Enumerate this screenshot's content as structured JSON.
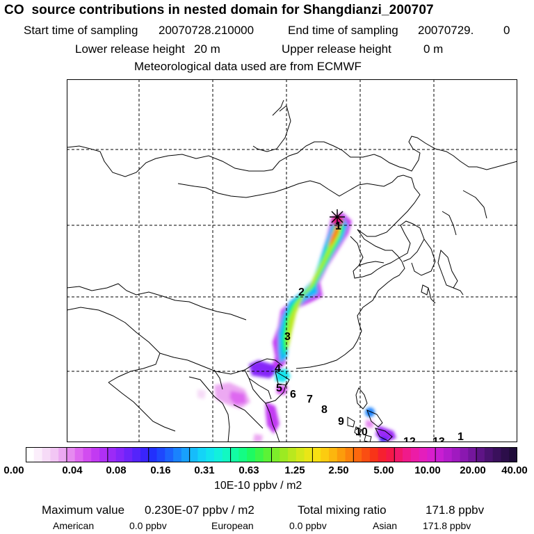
{
  "header": {
    "title": "CO  source contributions in nested domain for Shangdianzi_200707",
    "start_label": "Start time of sampling",
    "start_value": "20070728.210000",
    "end_label": "End time of sampling",
    "end_value": "20070729.",
    "end_value2": "0",
    "lower_label": "Lower release height",
    "lower_value": "20 m",
    "upper_label": "Upper release height",
    "upper_value": "0 m",
    "met_line": "Meteorological data used are from ECMWF"
  },
  "map": {
    "receptor_icon": "star-marker-icon",
    "backward_time_labels": [
      {
        "text": "1"
      },
      {
        "text": "2"
      },
      {
        "text": "3"
      },
      {
        "text": "4"
      },
      {
        "text": "5"
      },
      {
        "text": "6"
      },
      {
        "text": "7"
      },
      {
        "text": "8"
      },
      {
        "text": "9"
      },
      {
        "text": "10"
      },
      {
        "text": "12"
      },
      {
        "text": "13"
      },
      {
        "text": "1"
      }
    ]
  },
  "colorbar": {
    "tick_labels": [
      "0.00",
      "0.04",
      "0.08",
      "0.16",
      "0.31",
      "0.63",
      "1.25",
      "2.50",
      "5.00",
      "10.00",
      "20.00",
      "40.00"
    ],
    "unit": "10E-10 ppbv / m2",
    "colors": [
      "#ffffff",
      "#fbeefb",
      "#f6dbf7",
      "#f2c6f4",
      "#eca9f2",
      "#e68af0",
      "#de68f0",
      "#d24cf0",
      "#c23af2",
      "#b030f5",
      "#9c2af7",
      "#8626f9",
      "#6e24fa",
      "#5424fb",
      "#3a24fc",
      "#2230fd",
      "#1e48fd",
      "#1c64fd",
      "#1a82fd",
      "#18a0fd",
      "#16bcfb",
      "#14d4f7",
      "#12e4ee",
      "#12f0dc",
      "#12f8c2",
      "#12fca4",
      "#14fc84",
      "#1efa62",
      "#3cf648",
      "#5cf236",
      "#7cee2a",
      "#9cea22",
      "#bae81e",
      "#d4e81a",
      "#eae616",
      "#f8e012",
      "#fccc10",
      "#fcb60e",
      "#fc9c0c",
      "#fc820c",
      "#fc680e",
      "#fa4e12",
      "#f83418",
      "#f62030",
      "#f41848",
      "#f2186a",
      "#f01a8a",
      "#ec1ca6",
      "#e41ebc",
      "#d81ecc",
      "#c81ed2",
      "#b41ccc",
      "#a01ac0",
      "#8a18b0",
      "#74169c",
      "#5e1486",
      "#4a1270",
      "#3a105c",
      "#2c0e4a",
      "#200c3a"
    ]
  },
  "footer": {
    "max_label": "Maximum value",
    "max_value": "0.230E-07 ppbv / m2",
    "total_label": "Total mixing ratio",
    "total_value": "171.8 ppbv",
    "american_label": "American",
    "american_value": "0.0 ppbv",
    "european_label": "European",
    "european_value": "0.0 ppbv",
    "asian_label": "Asian",
    "asian_value": "171.8 ppbv"
  }
}
